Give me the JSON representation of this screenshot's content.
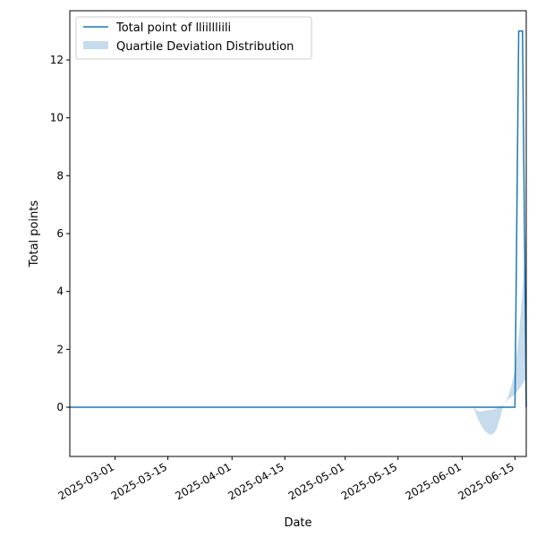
{
  "chart_data": {
    "type": "line",
    "xlabel": "Date",
    "ylabel": "Total points",
    "xlim": [
      "2025-02-17",
      "2025-06-18"
    ],
    "ylim": [
      -1.7,
      13.7
    ],
    "x_ticks": [
      "2025-03-01",
      "2025-03-15",
      "2025-04-01",
      "2025-04-15",
      "2025-05-01",
      "2025-05-15",
      "2025-06-01",
      "2025-06-15"
    ],
    "y_ticks": [
      0,
      2,
      4,
      6,
      8,
      10,
      12
    ],
    "grid": false,
    "legend_position": "top-left",
    "series": [
      {
        "name": "Total point of lliillliili",
        "color": "#1f77b4",
        "x": [
          "2025-02-17",
          "2025-06-15",
          "2025-06-16",
          "2025-06-17",
          "2025-06-18"
        ],
        "y": [
          0,
          0,
          13,
          13,
          0
        ]
      }
    ],
    "band": {
      "name": "Quartile Deviation Distribution",
      "color": "#c6dcec",
      "x": [
        "2025-06-04",
        "2025-06-05",
        "2025-06-06",
        "2025-06-07",
        "2025-06-08",
        "2025-06-09",
        "2025-06-10",
        "2025-06-11",
        "2025-06-12",
        "2025-06-13",
        "2025-06-14",
        "2025-06-15",
        "2025-06-16",
        "2025-06-17",
        "2025-06-18"
      ],
      "lower": [
        0,
        -0.35,
        -0.62,
        -0.82,
        -0.93,
        -0.95,
        -0.8,
        -0.4,
        0.1,
        0.25,
        0.35,
        0.45,
        0.6,
        0.8,
        1.0
      ],
      "upper": [
        0,
        -0.12,
        -0.15,
        -0.12,
        -0.1,
        -0.08,
        -0.05,
        0,
        0.1,
        0.3,
        0.7,
        1.3,
        2.4,
        4.0,
        6.2
      ]
    }
  }
}
